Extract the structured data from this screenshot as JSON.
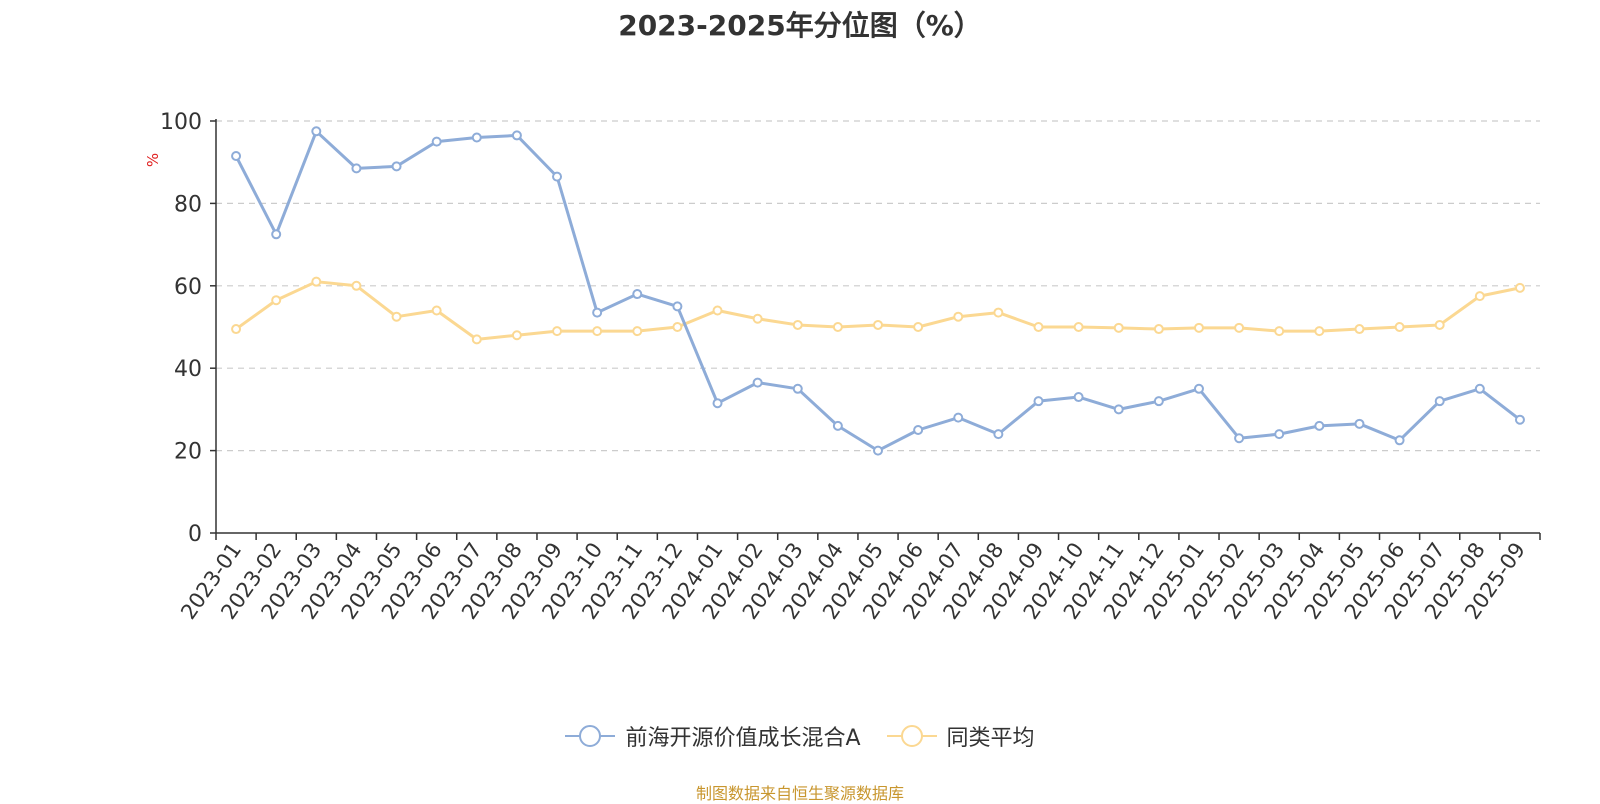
{
  "colors": {
    "fund": "#8eacd8",
    "avg": "#fbd892",
    "grid": "#cccccc",
    "axis": "#333333",
    "ylabel": "#e02020",
    "source": "#c8962e"
  },
  "source_note": "制图数据来自恒生聚源数据库",
  "chart_data": {
    "type": "line",
    "title": "2023-2025年分位图（%）",
    "xlabel": "",
    "ylabel": "%",
    "ylim": [
      0,
      100
    ],
    "yticks": [
      0,
      20,
      40,
      60,
      80,
      100
    ],
    "grid": true,
    "legend_position": "bottom",
    "categories": [
      "2023-01",
      "2023-02",
      "2023-03",
      "2023-04",
      "2023-05",
      "2023-06",
      "2023-07",
      "2023-08",
      "2023-09",
      "2023-10",
      "2023-11",
      "2023-12",
      "2024-01",
      "2024-02",
      "2024-03",
      "2024-04",
      "2024-05",
      "2024-06",
      "2024-07",
      "2024-08",
      "2024-09",
      "2024-10",
      "2024-11",
      "2024-12",
      "2025-01",
      "2025-02",
      "2025-03",
      "2025-04",
      "2025-05",
      "2025-06",
      "2025-07",
      "2025-08",
      "2025-09"
    ],
    "series": [
      {
        "name": "前海开源价值成长混合A",
        "color": "#8eacd8",
        "values": [
          91.5,
          72.5,
          97.5,
          88.5,
          89.0,
          95.0,
          96.0,
          96.5,
          86.5,
          53.5,
          58.0,
          55.0,
          31.5,
          36.5,
          35.0,
          26.0,
          20.0,
          25.0,
          28.0,
          24.0,
          32.0,
          33.0,
          30.0,
          32.0,
          35.0,
          23.0,
          24.0,
          26.0,
          26.5,
          22.5,
          32.0,
          35.0,
          27.5
        ]
      },
      {
        "name": "同类平均",
        "color": "#fbd892",
        "values": [
          49.5,
          56.5,
          61.0,
          60.0,
          52.5,
          54.0,
          47.0,
          48.0,
          49.0,
          49.0,
          49.0,
          50.0,
          54.0,
          52.0,
          50.5,
          50.0,
          50.5,
          50.0,
          52.5,
          53.5,
          50.0,
          50.0,
          49.8,
          49.5,
          49.8,
          49.8,
          49.0,
          49.0,
          49.5,
          50.0,
          50.5,
          57.5,
          59.5
        ]
      }
    ]
  }
}
